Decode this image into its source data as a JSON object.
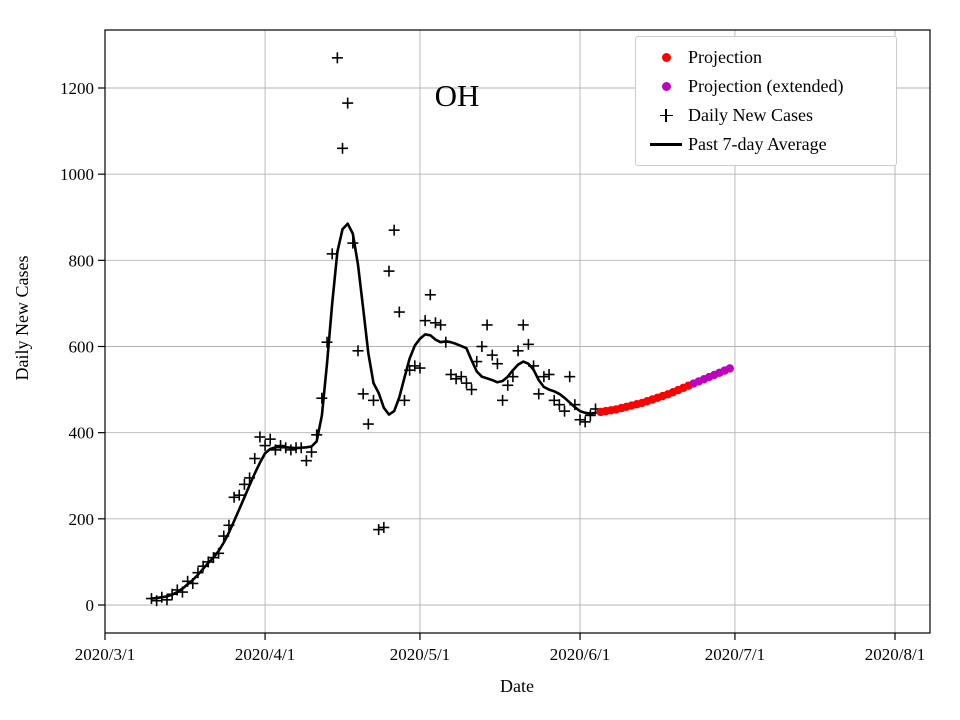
{
  "chart_data": {
    "type": "line",
    "title": "OH",
    "grid": true,
    "legend_position": "upper right",
    "x_axis": {
      "label": "Date",
      "note": "day = days since 2020/3/1",
      "range_days": [
        0,
        160
      ],
      "ticks": [
        {
          "day": 0,
          "label": "2020/3/1"
        },
        {
          "day": 31,
          "label": "2020/4/1"
        },
        {
          "day": 61,
          "label": "2020/5/1"
        },
        {
          "day": 92,
          "label": "2020/6/1"
        },
        {
          "day": 122,
          "label": "2020/7/1"
        },
        {
          "day": 153,
          "label": "2020/8/1"
        }
      ]
    },
    "y_axis": {
      "label": "Daily New Cases",
      "range": [
        0,
        1335
      ],
      "ticks": [
        {
          "value": 0,
          "label": "0"
        },
        {
          "value": 200,
          "label": "200"
        },
        {
          "value": 400,
          "label": "400"
        },
        {
          "value": 600,
          "label": "600"
        },
        {
          "value": 800,
          "label": "800"
        },
        {
          "value": 1000,
          "label": "1000"
        },
        {
          "value": 1200,
          "label": "1200"
        }
      ]
    },
    "legend": [
      {
        "label": "Projection",
        "marker": "dot",
        "color": "#ff0000"
      },
      {
        "label": "Projection (extended)",
        "marker": "dot",
        "color": "#bf00bf"
      },
      {
        "label": "Daily New Cases",
        "marker": "plus",
        "color": "#000000"
      },
      {
        "label": "Past 7-day Average",
        "marker": "line",
        "color": "#000000"
      }
    ],
    "colors": {
      "projection": "#ff0000",
      "projection_extended": "#bf00bf",
      "daily_marker": "#000000",
      "average_line": "#000000",
      "grid": "#b3b3b3"
    },
    "series": {
      "daily_new_cases": {
        "name": "Daily New Cases",
        "style": "plus-markers",
        "x_days": [
          9,
          10,
          11,
          12,
          13,
          14,
          15,
          16,
          17,
          18,
          19,
          20,
          21,
          22,
          23,
          24,
          25,
          26,
          27,
          28,
          29,
          30,
          31,
          32,
          33,
          34,
          35,
          36,
          37,
          38,
          39,
          40,
          41,
          42,
          43,
          44,
          45,
          46,
          47,
          48,
          49,
          50,
          51,
          52,
          53,
          54,
          55,
          56,
          57,
          58,
          59,
          60,
          61,
          62,
          63,
          64,
          65,
          66,
          67,
          68,
          69,
          70,
          71,
          72,
          73,
          74,
          75,
          76,
          77,
          78,
          79,
          80,
          81,
          82,
          83,
          84,
          85,
          86,
          87,
          88,
          89,
          90,
          91,
          92,
          93,
          94,
          95
        ],
        "values": [
          15,
          10,
          18,
          12,
          25,
          35,
          30,
          55,
          50,
          75,
          90,
          100,
          110,
          120,
          160,
          185,
          250,
          255,
          280,
          295,
          340,
          390,
          370,
          385,
          360,
          370,
          365,
          360,
          365,
          365,
          335,
          355,
          395,
          480,
          610,
          815,
          1270,
          1060,
          1165,
          840,
          590,
          490,
          420,
          475,
          175,
          180,
          775,
          870,
          680,
          475,
          545,
          555,
          550,
          660,
          720,
          655,
          650,
          610,
          535,
          525,
          530,
          515,
          500,
          565,
          600,
          650,
          580,
          560,
          475,
          510,
          530,
          590,
          650,
          605,
          555,
          490,
          530,
          535,
          475,
          465,
          450,
          530,
          465,
          430,
          425,
          440,
          455
        ]
      },
      "avg7": {
        "name": "Past 7-day Average",
        "style": "line",
        "x_days": [
          9,
          10,
          11,
          12,
          13,
          14,
          15,
          16,
          17,
          18,
          19,
          20,
          21,
          22,
          23,
          24,
          25,
          26,
          27,
          28,
          29,
          30,
          31,
          32,
          33,
          34,
          35,
          36,
          37,
          38,
          39,
          40,
          41,
          42,
          43,
          44,
          45,
          46,
          47,
          48,
          49,
          50,
          51,
          52,
          53,
          54,
          55,
          56,
          57,
          58,
          59,
          60,
          61,
          62,
          63,
          64,
          65,
          66,
          67,
          68,
          69,
          70,
          71,
          72,
          73,
          74,
          75,
          76,
          77,
          78,
          79,
          80,
          81,
          82,
          83,
          84,
          85,
          86,
          87,
          88,
          89,
          90,
          91,
          92,
          93,
          94,
          95
        ],
        "values": [
          15,
          16,
          18,
          20,
          24,
          30,
          38,
          48,
          58,
          70,
          84,
          98,
          110,
          125,
          145,
          168,
          195,
          222,
          250,
          278,
          305,
          330,
          352,
          362,
          366,
          367,
          366,
          365,
          364,
          365,
          366,
          368,
          380,
          440,
          560,
          700,
          820,
          872,
          885,
          862,
          790,
          688,
          585,
          515,
          492,
          458,
          442,
          450,
          482,
          528,
          572,
          602,
          618,
          628,
          626,
          616,
          610,
          612,
          610,
          606,
          601,
          596,
          568,
          542,
          530,
          526,
          522,
          517,
          520,
          530,
          545,
          558,
          565,
          560,
          546,
          522,
          506,
          500,
          496,
          490,
          481,
          470,
          459,
          450,
          446,
          444,
          446
        ]
      },
      "projection": {
        "name": "Projection",
        "style": "dots",
        "x_days": [
          96,
          97,
          98,
          99,
          100,
          101,
          102,
          103,
          104,
          105,
          106,
          107,
          108,
          109,
          110,
          111,
          112,
          113
        ],
        "values": [
          448,
          450,
          452,
          454,
          457,
          460,
          463,
          466,
          469,
          473,
          477,
          481,
          485,
          489,
          494,
          499,
          504,
          509
        ]
      },
      "projection_extended": {
        "name": "Projection (extended)",
        "style": "dots",
        "x_days": [
          114,
          115,
          116,
          117,
          118,
          119,
          120,
          121
        ],
        "values": [
          514,
          519,
          524,
          529,
          534,
          539,
          544,
          549
        ]
      }
    }
  }
}
